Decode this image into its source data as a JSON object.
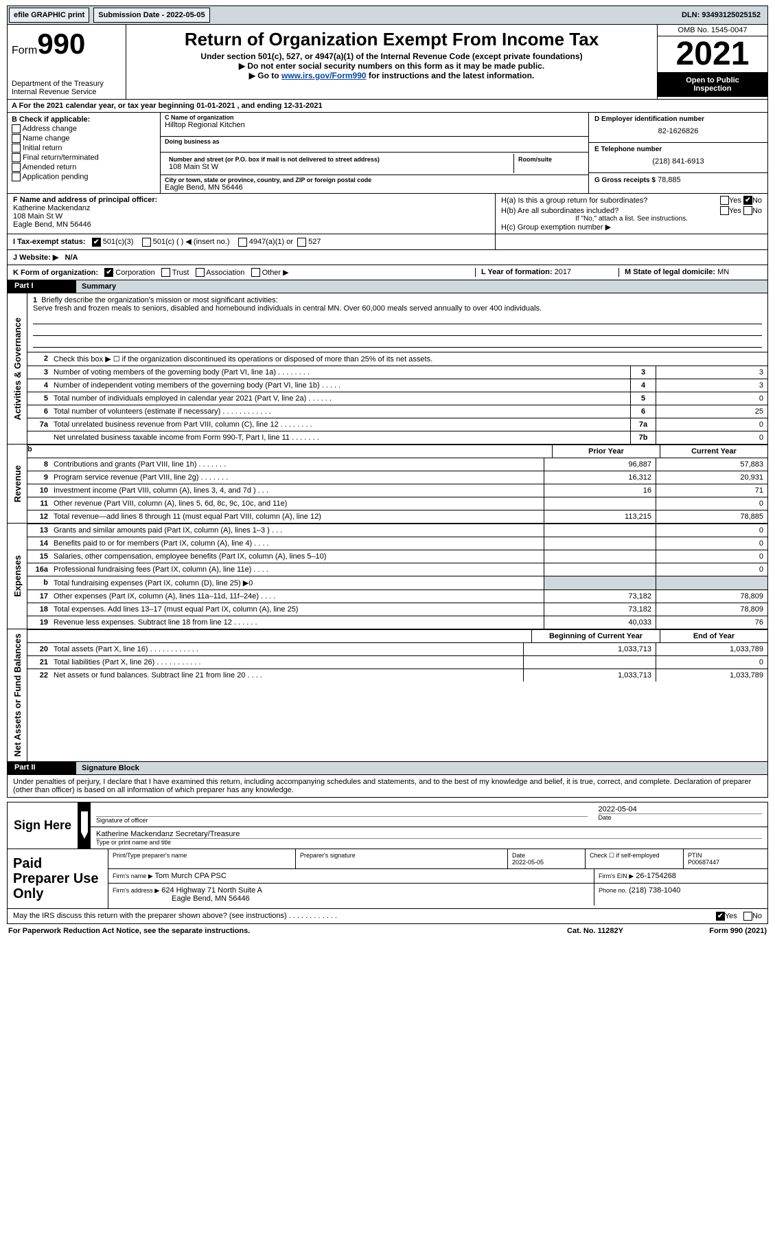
{
  "topbar": {
    "efile_label": "efile GRAPHIC print",
    "submission_label": "Submission Date - 2022-05-05",
    "dln_label": "DLN: 93493125025152"
  },
  "header": {
    "form_word": "Form",
    "form_num": "990",
    "dept": "Department of the Treasury\nInternal Revenue Service",
    "title": "Return of Organization Exempt From Income Tax",
    "sub1": "Under section 501(c), 527, or 4947(a)(1) of the Internal Revenue Code (except private foundations)",
    "sub2": "▶ Do not enter social security numbers on this form as it may be made public.",
    "sub3_pre": "▶ Go to ",
    "sub3_link": "www.irs.gov/Form990",
    "sub3_post": " for instructions and the latest information.",
    "omb": "OMB No. 1545-0047",
    "year": "2021",
    "open1": "Open to Public",
    "open2": "Inspection"
  },
  "period": {
    "text": "A For the 2021 calendar year, or tax year beginning 01-01-2021     , and ending 12-31-2021"
  },
  "colB": {
    "label": "B Check if applicable:",
    "items": [
      "Address change",
      "Name change",
      "Initial return",
      "Final return/terminated",
      "Amended return",
      "Application pending"
    ]
  },
  "colC": {
    "name_lbl": "C Name of organization",
    "name": "Hilltop Regional Kitchen",
    "dba_lbl": "Doing business as",
    "dba": "",
    "addr_lbl": "Number and street (or P.O. box if mail is not delivered to street address)",
    "room_lbl": "Room/suite",
    "addr": "108 Main St W",
    "city_lbl": "City or town, state or province, country, and ZIP or foreign postal code",
    "city": "Eagle Bend, MN  56446"
  },
  "colD": {
    "ein_lbl": "D Employer identification number",
    "ein": "82-1626826",
    "phone_lbl": "E Telephone number",
    "phone": "(218) 841-6913",
    "gross_lbl": "G Gross receipts $",
    "gross": "78,885"
  },
  "fg": {
    "f_lbl": "F  Name and address of principal officer:",
    "f_name": "Katherine Mackendanz",
    "f_addr1": "108 Main St W",
    "f_addr2": "Eagle Bend, MN  56446",
    "ha_lbl": "H(a)  Is this a group return for subordinates?",
    "hb_lbl": "H(b)  Are all subordinates included?",
    "hb_note": "If \"No,\" attach a list. See instructions.",
    "hc_lbl": "H(c)  Group exemption number ▶",
    "yes": "Yes",
    "no": "No"
  },
  "status": {
    "i_lbl": "I   Tax-exempt status:",
    "s1": "501(c)(3)",
    "s2": "501(c) (  ) ◀ (insert no.)",
    "s3": "4947(a)(1) or",
    "s4": "527",
    "j_lbl": "J   Website: ▶",
    "j_val": "N/A"
  },
  "krow": {
    "k_lbl": "K Form of organization:",
    "opts": [
      "Corporation",
      "Trust",
      "Association",
      "Other ▶"
    ],
    "l_lbl": "L Year of formation:",
    "l_val": "2017",
    "m_lbl": "M State of legal domicile:",
    "m_val": "MN"
  },
  "part1": {
    "hdr": "Part I",
    "title": "Summary",
    "side_ag": "Activities & Governance",
    "side_rev": "Revenue",
    "side_exp": "Expenses",
    "side_net": "Net Assets or Fund Balances",
    "l1_lbl": "Briefly describe the organization's mission or most significant activities:",
    "l1_text": "Serve fresh and frozen meals to seniors, disabled and homebound individuals in central MN. Over 60,000 meals served annually to over 400 individuals.",
    "l2_lbl": "Check this box ▶ ☐ if the organization discontinued its operations or disposed of more than 25% of its net assets.",
    "rows_ag": [
      {
        "n": "3",
        "d": "Number of voting members of the governing body (Part VI, line 1a)   .     .     .     .     .     .     .     .",
        "b": "3",
        "v": "3"
      },
      {
        "n": "4",
        "d": "Number of independent voting members of the governing body (Part VI, line 1b)   .     .     .     .     .",
        "b": "4",
        "v": "3"
      },
      {
        "n": "5",
        "d": "Total number of individuals employed in calendar year 2021 (Part V, line 2a)   .     .     .     .     .     .",
        "b": "5",
        "v": "0"
      },
      {
        "n": "6",
        "d": "Total number of volunteers (estimate if necessary)     .     .     .     .     .     .     .     .     .     .     .     .",
        "b": "6",
        "v": "25"
      },
      {
        "n": "7a",
        "d": "Total unrelated business revenue from Part VIII, column (C), line 12     .     .     .     .     .     .     .     .",
        "b": "7a",
        "v": "0"
      },
      {
        "n": "",
        "d": "Net unrelated business taxable income from Form 990-T, Part I, line 11   .     .     .     .     .     .     .",
        "b": "7b",
        "v": "0"
      }
    ],
    "hdr_prior": "Prior Year",
    "hdr_curr": "Current Year",
    "rows_rev": [
      {
        "n": "8",
        "d": "Contributions and grants (Part VIII, line 1h)     .     .     .     .     .     .     .",
        "p": "96,887",
        "c": "57,883"
      },
      {
        "n": "9",
        "d": "Program service revenue (Part VIII, line 2g)     .     .     .     .     .     .     .",
        "p": "16,312",
        "c": "20,931"
      },
      {
        "n": "10",
        "d": "Investment income (Part VIII, column (A), lines 3, 4, and 7d )     .     .     .",
        "p": "16",
        "c": "71"
      },
      {
        "n": "11",
        "d": "Other revenue (Part VIII, column (A), lines 5, 6d, 8c, 9c, 10c, and 11e)",
        "p": "",
        "c": "0"
      },
      {
        "n": "12",
        "d": "Total revenue—add lines 8 through 11 (must equal Part VIII, column (A), line 12)",
        "p": "113,215",
        "c": "78,885"
      }
    ],
    "rows_exp": [
      {
        "n": "13",
        "d": "Grants and similar amounts paid (Part IX, column (A), lines 1–3 )   .     .     .",
        "p": "",
        "c": "0"
      },
      {
        "n": "14",
        "d": "Benefits paid to or for members (Part IX, column (A), line 4)   .     .     .     .",
        "p": "",
        "c": "0"
      },
      {
        "n": "15",
        "d": "Salaries, other compensation, employee benefits (Part IX, column (A), lines 5–10)",
        "p": "",
        "c": "0"
      },
      {
        "n": "16a",
        "d": "Professional fundraising fees (Part IX, column (A), line 11e)   .     .     .     .",
        "p": "",
        "c": "0"
      },
      {
        "n": "b",
        "d": "Total fundraising expenses (Part IX, column (D), line 25) ▶0",
        "p": "shade",
        "c": "shade"
      },
      {
        "n": "17",
        "d": "Other expenses (Part IX, column (A), lines 11a–11d, 11f–24e)   .     .     .     .",
        "p": "73,182",
        "c": "78,809"
      },
      {
        "n": "18",
        "d": "Total expenses. Add lines 13–17 (must equal Part IX, column (A), line 25)",
        "p": "73,182",
        "c": "78,809"
      },
      {
        "n": "19",
        "d": "Revenue less expenses. Subtract line 18 from line 12   .     .     .     .     .     .",
        "p": "40,033",
        "c": "76"
      }
    ],
    "hdr_beg": "Beginning of Current Year",
    "hdr_end": "End of Year",
    "rows_net": [
      {
        "n": "20",
        "d": "Total assets (Part X, line 16)   .     .     .     .     .     .     .     .     .     .     .     .",
        "p": "1,033,713",
        "c": "1,033,789"
      },
      {
        "n": "21",
        "d": "Total liabilities (Part X, line 26)   .     .     .     .     .     .     .     .     .     .     .",
        "p": "",
        "c": "0"
      },
      {
        "n": "22",
        "d": "Net assets or fund balances. Subtract line 21 from line 20   .     .     .     .",
        "p": "1,033,713",
        "c": "1,033,789"
      }
    ]
  },
  "part2": {
    "hdr": "Part II",
    "title": "Signature Block",
    "decl": "Under penalties of perjury, I declare that I have examined this return, including accompanying schedules and statements, and to the best of my knowledge and belief, it is true, correct, and complete. Declaration of preparer (other than officer) is based on all information of which preparer has any knowledge.",
    "sign_here": "Sign Here",
    "sig_of_officer": "Signature of officer",
    "sig_date": "2022-05-04",
    "date_lbl": "Date",
    "name_title": "Katherine Mackendanz  Secretary/Treasure",
    "type_lbl": "Type or print name and title"
  },
  "paid": {
    "label": "Paid Preparer Use Only",
    "h1": "Print/Type preparer's name",
    "h2": "Preparer's signature",
    "h3": "Date",
    "h3v": "2022-05-05",
    "h4": "Check ☐ if self-employed",
    "h5": "PTIN",
    "h5v": "P00687447",
    "firm_name_lbl": "Firm's name     ▶",
    "firm_name": "Tom Murch CPA PSC",
    "firm_ein_lbl": "Firm's EIN ▶",
    "firm_ein": "26-1754268",
    "firm_addr_lbl": "Firm's address ▶",
    "firm_addr1": "624 Highway 71 North Suite A",
    "firm_addr2": "Eagle Bend, MN  56446",
    "phone_lbl": "Phone no.",
    "phone": "(218) 738-1040"
  },
  "footer": {
    "discuss": "May the IRS discuss this return with the preparer shown above? (see instructions)   .     .     .     .     .     .     .     .     .     .     .     .",
    "yes": "Yes",
    "no": "No",
    "pra": "For Paperwork Reduction Act Notice, see the separate instructions.",
    "cat": "Cat. No. 11282Y",
    "form": "Form 990 (2021)"
  }
}
